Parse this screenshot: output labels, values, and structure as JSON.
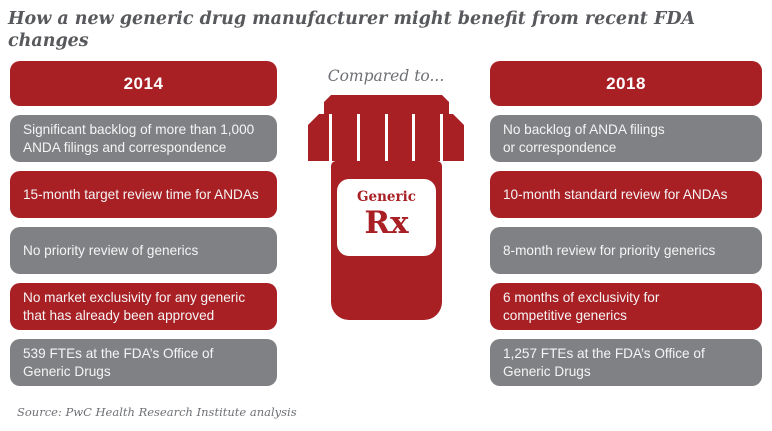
{
  "title": "How a new generic drug manufacturer might benefit from recent FDA changes",
  "compared_to": "Compared to...",
  "bottle": {
    "label_top": "Generic",
    "label_main": "Rx"
  },
  "columns": {
    "left": {
      "header": "2014",
      "items": [
        {
          "text": "Significant backlog of more than 1,000\nANDA filings and correspondence",
          "color": "gray"
        },
        {
          "text": "15-month target review time for ANDAs",
          "color": "red"
        },
        {
          "text": "No priority review of generics",
          "color": "gray"
        },
        {
          "text": "No market exclusivity for any generic\nthat has already been approved",
          "color": "red"
        },
        {
          "text": "539 FTEs at the FDA’s Office of\nGeneric Drugs",
          "color": "gray"
        }
      ]
    },
    "right": {
      "header": "2018",
      "items": [
        {
          "text": "No backlog of ANDA filings\nor correspondence",
          "color": "gray"
        },
        {
          "text": "10-month standard review for ANDAs",
          "color": "red"
        },
        {
          "text": "8-month review for priority generics",
          "color": "gray"
        },
        {
          "text": "6 months of exclusivity for\ncompetitive generics",
          "color": "red"
        },
        {
          "text": "1,257 FTEs at the FDA’s Office of\nGeneric Drugs",
          "color": "gray"
        }
      ]
    }
  },
  "source": "Source: PwC Health Research Institute analysis",
  "colors": {
    "red": "#A81F24",
    "gray": "#7F8184",
    "title_gray": "#58595C",
    "muted_gray": "#6E7074"
  }
}
